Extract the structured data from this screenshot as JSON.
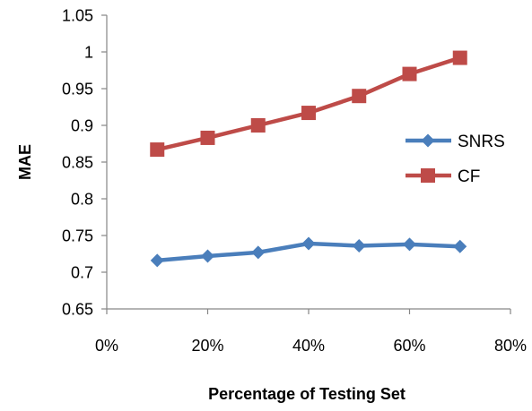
{
  "chart_data": {
    "type": "line",
    "title": "",
    "xlabel": "Percentage of Testing Set",
    "ylabel": "MAE",
    "x_unit": "percent",
    "xlim": [
      0,
      80
    ],
    "ylim": [
      0.65,
      1.05
    ],
    "xticks": [
      0,
      20,
      40,
      60,
      80
    ],
    "xtick_labels": [
      "0%",
      "20%",
      "40%",
      "60%",
      "80%"
    ],
    "yticks": [
      0.65,
      0.7,
      0.75,
      0.8,
      0.85,
      0.9,
      0.95,
      1.0,
      1.05
    ],
    "ytick_labels": [
      "0.65",
      "0.7",
      "0.75",
      "0.8",
      "0.85",
      "0.9",
      "0.95",
      "1",
      "1.05"
    ],
    "grid": false,
    "legend_position": "right",
    "x": [
      10,
      20,
      30,
      40,
      50,
      60,
      70
    ],
    "series": [
      {
        "name": "SNRS",
        "values": [
          0.716,
          0.722,
          0.727,
          0.739,
          0.736,
          0.738,
          0.735
        ],
        "color": "#4a7ebb",
        "marker": "diamond"
      },
      {
        "name": "CF",
        "values": [
          0.867,
          0.883,
          0.9,
          0.917,
          0.94,
          0.97,
          0.992
        ],
        "color": "#be4b48",
        "marker": "square"
      }
    ]
  }
}
